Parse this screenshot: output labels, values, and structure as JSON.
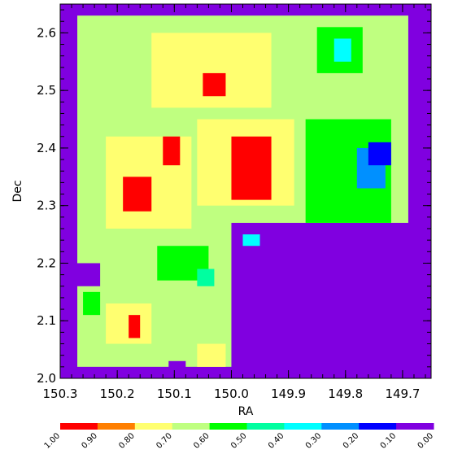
{
  "chart_data": {
    "type": "heatmap",
    "xlabel": "RA",
    "ylabel": "Dec",
    "xlim": [
      150.3,
      149.65
    ],
    "ylim": [
      2.0,
      2.65
    ],
    "x_ticks": [
      "150.3",
      "150.2",
      "150.1",
      "150.0",
      "149.9",
      "149.8",
      "149.7"
    ],
    "x_tick_values": [
      150.3,
      150.2,
      150.1,
      150.0,
      149.9,
      149.8,
      149.7
    ],
    "y_ticks": [
      "2.0",
      "2.1",
      "2.2",
      "2.3",
      "2.4",
      "2.5",
      "2.6"
    ],
    "y_tick_values": [
      2.0,
      2.1,
      2.2,
      2.3,
      2.4,
      2.5,
      2.6
    ],
    "x_minor_step": 0.02,
    "y_minor_step": 0.02,
    "background_value": 0.0,
    "colorbar": {
      "labels": [
        "1.00",
        "0.90",
        "0.80",
        "0.70",
        "0.60",
        "0.50",
        "0.40",
        "0.30",
        "0.20",
        "0.10",
        "0.00"
      ],
      "colors": [
        "#ff0000",
        "#ff7f00",
        "#ffff70",
        "#bfff80",
        "#00ff00",
        "#00ffa0",
        "#00ffff",
        "#0090ff",
        "#0000ff",
        "#8000e0"
      ]
    },
    "regions": [
      {
        "name": "coverage",
        "value": 0.7,
        "ra": [
          150.27,
          149.69
        ],
        "dec": [
          2.02,
          2.63
        ]
      },
      {
        "name": "cutout-lower-right",
        "value": 0.0,
        "ra": [
          150.0,
          149.65
        ],
        "dec": [
          2.0,
          2.27
        ]
      },
      {
        "name": "cutout-left-notch",
        "value": 0.0,
        "ra": [
          150.3,
          150.23
        ],
        "dec": [
          2.16,
          2.2
        ]
      },
      {
        "name": "cutout-bottom-notch",
        "value": 0.0,
        "ra": [
          150.11,
          150.08
        ],
        "dec": [
          2.0,
          2.03
        ]
      },
      {
        "name": "hot-center-left",
        "value": 0.8,
        "ra": [
          150.22,
          150.07
        ],
        "dec": [
          2.26,
          2.42
        ]
      },
      {
        "name": "hot-top",
        "value": 0.8,
        "ra": [
          150.14,
          149.93
        ],
        "dec": [
          2.47,
          2.6
        ]
      },
      {
        "name": "hot-center",
        "value": 0.8,
        "ra": [
          150.06,
          149.89
        ],
        "dec": [
          2.3,
          2.45
        ]
      },
      {
        "name": "peak-left",
        "value": 1.0,
        "ra": [
          150.19,
          150.14
        ],
        "dec": [
          2.29,
          2.35
        ]
      },
      {
        "name": "peak-center",
        "value": 1.0,
        "ra": [
          150.0,
          149.93
        ],
        "dec": [
          2.31,
          2.42
        ]
      },
      {
        "name": "peak-top",
        "value": 1.0,
        "ra": [
          150.05,
          150.01
        ],
        "dec": [
          2.49,
          2.53
        ]
      },
      {
        "name": "peak-upper-left",
        "value": 1.0,
        "ra": [
          150.12,
          150.09
        ],
        "dec": [
          2.37,
          2.42
        ]
      },
      {
        "name": "cool-right",
        "value": 0.6,
        "ra": [
          149.87,
          149.72
        ],
        "dec": [
          2.27,
          2.45
        ]
      },
      {
        "name": "cool-lower",
        "value": 0.6,
        "ra": [
          150.13,
          150.04
        ],
        "dec": [
          2.17,
          2.23
        ]
      },
      {
        "name": "low-right",
        "value": 0.3,
        "ra": [
          149.78,
          149.73
        ],
        "dec": [
          2.33,
          2.4
        ]
      },
      {
        "name": "min-right",
        "value": 0.2,
        "ra": [
          149.76,
          149.72
        ],
        "dec": [
          2.37,
          2.41
        ]
      },
      {
        "name": "hot-lower-left",
        "value": 0.8,
        "ra": [
          150.22,
          150.14
        ],
        "dec": [
          2.06,
          2.13
        ]
      },
      {
        "name": "peak-lower-left",
        "value": 1.0,
        "ra": [
          150.18,
          150.16
        ],
        "dec": [
          2.07,
          2.11
        ]
      },
      {
        "name": "hot-bottom",
        "value": 0.8,
        "ra": [
          150.06,
          150.01
        ],
        "dec": [
          2.02,
          2.06
        ]
      },
      {
        "name": "cool-top-right",
        "value": 0.6,
        "ra": [
          149.85,
          149.77
        ],
        "dec": [
          2.53,
          2.61
        ]
      },
      {
        "name": "low-top-right",
        "value": 0.4,
        "ra": [
          149.82,
          149.79
        ],
        "dec": [
          2.55,
          2.59
        ]
      },
      {
        "name": "low-center",
        "value": 0.5,
        "ra": [
          150.06,
          150.03
        ],
        "dec": [
          2.16,
          2.19
        ]
      },
      {
        "name": "low-mid",
        "value": 0.4,
        "ra": [
          149.98,
          149.95
        ],
        "dec": [
          2.23,
          2.25
        ]
      },
      {
        "name": "cool-left",
        "value": 0.6,
        "ra": [
          150.26,
          150.23
        ],
        "dec": [
          2.11,
          2.15
        ]
      }
    ]
  }
}
